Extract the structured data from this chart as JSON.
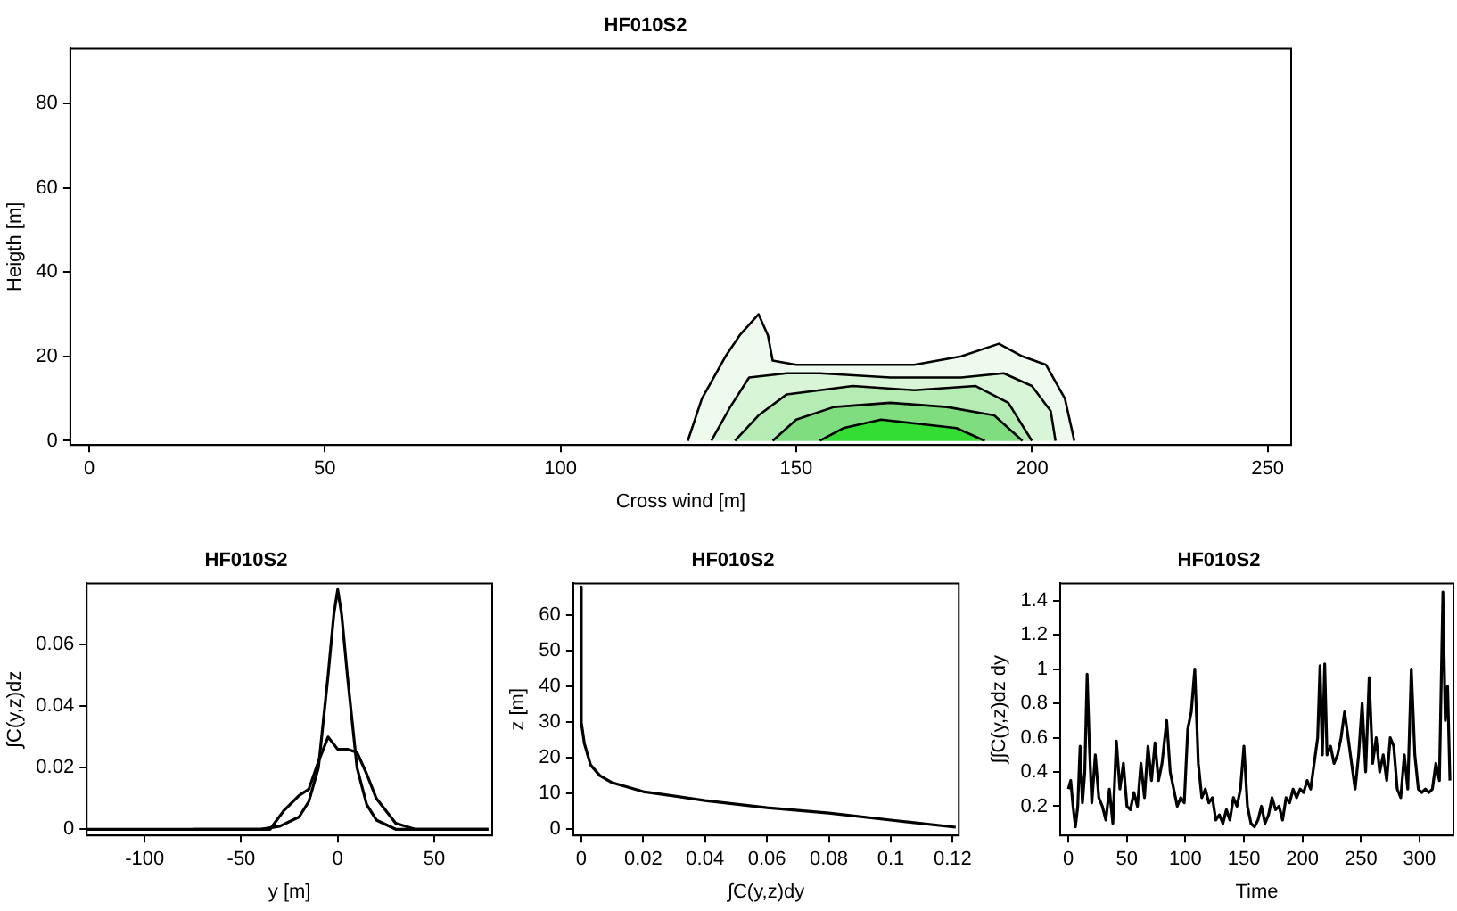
{
  "chart_data": [
    {
      "type": "area",
      "title": "HF010S2",
      "xlabel": "Cross wind [m]",
      "ylabel": "Heigth [m]",
      "xlim": [
        -4,
        255
      ],
      "ylim": [
        -1,
        93
      ],
      "xticks": [
        0,
        50,
        100,
        150,
        200,
        250
      ],
      "yticks": [
        0,
        20,
        40,
        60,
        80
      ],
      "grid": false,
      "legend": false,
      "marker": "none",
      "line_style": "solid",
      "series": [
        {
          "color": "#effaef",
          "x": [
            127,
            130,
            135,
            138,
            142,
            144,
            145,
            150,
            160,
            175,
            185,
            193,
            198,
            203,
            207,
            209
          ],
          "values": [
            0,
            10,
            20,
            25,
            30,
            25,
            19,
            18,
            18,
            18,
            20,
            23,
            20,
            18,
            10,
            0
          ]
        },
        {
          "color": "#d8f5d8",
          "x": [
            132,
            136,
            140,
            148,
            155,
            170,
            185,
            194,
            200,
            204,
            205
          ],
          "values": [
            0,
            8,
            15,
            16,
            16,
            15,
            15,
            16,
            13,
            7,
            0
          ]
        },
        {
          "color": "#b4ecb4",
          "x": [
            137,
            142,
            148,
            155,
            162,
            175,
            188,
            195,
            200
          ],
          "values": [
            0,
            6,
            11,
            12,
            13,
            12,
            13,
            9,
            0
          ]
        },
        {
          "color": "#7fdc7f",
          "x": [
            145,
            150,
            158,
            170,
            182,
            192,
            198
          ],
          "values": [
            0,
            5,
            8,
            9,
            8,
            6,
            0
          ]
        },
        {
          "color": "#33dd33",
          "x": [
            155,
            160,
            168,
            176,
            184,
            190
          ],
          "values": [
            0,
            3,
            5,
            4,
            3,
            0
          ]
        }
      ]
    },
    {
      "type": "line",
      "title": "HF010S2",
      "xlabel": "y [m]",
      "ylabel": "∫C(y,z)dz",
      "xlim": [
        -130,
        80
      ],
      "ylim": [
        -0.002,
        0.08
      ],
      "xticks": [
        -100,
        -50,
        0,
        50
      ],
      "yticks": [
        0,
        0.02,
        0.04,
        0.06
      ],
      "grid": false,
      "legend": false,
      "marker": "none",
      "line_style": "solid",
      "series": [
        {
          "color": "#000000",
          "x": [
            -130,
            -40,
            -30,
            -20,
            -15,
            -10,
            -5,
            -2,
            0,
            2,
            5,
            10,
            15,
            20,
            30,
            78
          ],
          "values": [
            0,
            0,
            0.001,
            0.004,
            0.009,
            0.02,
            0.05,
            0.07,
            0.078,
            0.07,
            0.05,
            0.02,
            0.008,
            0.003,
            0,
            0
          ]
        },
        {
          "color": "#000000",
          "x": [
            -75,
            -35,
            -28,
            -20,
            -15,
            -10,
            -5,
            0,
            5,
            10,
            15,
            20,
            30,
            40,
            78
          ],
          "values": [
            0,
            0,
            0.006,
            0.011,
            0.013,
            0.022,
            0.03,
            0.026,
            0.026,
            0.025,
            0.018,
            0.01,
            0.002,
            0,
            0
          ]
        }
      ]
    },
    {
      "type": "line",
      "title": "HF010S2",
      "xlabel": "∫C(y,z)dy",
      "ylabel": "z [m]",
      "xlim": [
        -0.0026,
        0.122
      ],
      "ylim": [
        -1.8,
        69
      ],
      "xticks": [
        0,
        0.02,
        0.04,
        0.06,
        0.08,
        0.1,
        0.12
      ],
      "yticks": [
        0,
        10,
        20,
        30,
        40,
        50,
        60
      ],
      "grid": false,
      "legend": false,
      "marker": "none",
      "line_style": "solid",
      "series": [
        {
          "color": "#000000",
          "x": [
            0,
            0,
            0.001,
            0.003,
            0.006,
            0.01,
            0.02,
            0.04,
            0.06,
            0.08,
            0.1,
            0.121
          ],
          "values": [
            68,
            30,
            24,
            18,
            15,
            13,
            10.5,
            8,
            6,
            4.5,
            2.5,
            0.5
          ]
        }
      ]
    },
    {
      "type": "line",
      "title": "HF010S2",
      "xlabel": "Time",
      "ylabel": "∫∫C(y,z)dz dy",
      "xlim": [
        -7,
        329
      ],
      "ylim": [
        0.03,
        1.5
      ],
      "xticks": [
        0,
        50,
        100,
        150,
        200,
        250,
        300
      ],
      "yticks": [
        0.2,
        0.4,
        0.6,
        0.8,
        1,
        1.2,
        1.4
      ],
      "grid": false,
      "legend": false,
      "marker": "none",
      "line_style": "solid",
      "series": [
        {
          "color": "#000000",
          "x": [
            0,
            2,
            4,
            6,
            8,
            10,
            12,
            14,
            16,
            18,
            20,
            23,
            26,
            29,
            32,
            35,
            38,
            41,
            44,
            47,
            50,
            53,
            56,
            59,
            62,
            65,
            68,
            71,
            74,
            77,
            80,
            84,
            87,
            90,
            93,
            96,
            99,
            102,
            105,
            108,
            111,
            114,
            117,
            120,
            123,
            126,
            129,
            132,
            135,
            138,
            141,
            144,
            147,
            150,
            153,
            156,
            159,
            162,
            165,
            168,
            171,
            174,
            177,
            180,
            183,
            186,
            189,
            192,
            195,
            198,
            201,
            204,
            207,
            210,
            213,
            215,
            217,
            219,
            221,
            224,
            227,
            230,
            233,
            236,
            239,
            242,
            245,
            248,
            251,
            254,
            257,
            260,
            263,
            266,
            269,
            272,
            275,
            278,
            281,
            284,
            287,
            290,
            293,
            296,
            299,
            302,
            305,
            308,
            311,
            314,
            317,
            320,
            322,
            324,
            326
          ],
          "values": [
            0.3,
            0.35,
            0.2,
            0.08,
            0.2,
            0.55,
            0.22,
            0.4,
            0.97,
            0.55,
            0.22,
            0.5,
            0.25,
            0.2,
            0.12,
            0.3,
            0.1,
            0.58,
            0.3,
            0.45,
            0.2,
            0.18,
            0.28,
            0.2,
            0.45,
            0.25,
            0.55,
            0.35,
            0.57,
            0.35,
            0.45,
            0.7,
            0.4,
            0.3,
            0.2,
            0.25,
            0.22,
            0.65,
            0.75,
            1.0,
            0.45,
            0.25,
            0.3,
            0.22,
            0.25,
            0.12,
            0.15,
            0.1,
            0.18,
            0.12,
            0.25,
            0.2,
            0.3,
            0.55,
            0.2,
            0.1,
            0.08,
            0.12,
            0.2,
            0.1,
            0.15,
            0.25,
            0.18,
            0.2,
            0.12,
            0.25,
            0.22,
            0.3,
            0.25,
            0.3,
            0.28,
            0.35,
            0.3,
            0.45,
            0.6,
            1.02,
            0.5,
            1.03,
            0.5,
            0.55,
            0.45,
            0.5,
            0.6,
            0.75,
            0.6,
            0.45,
            0.3,
            0.5,
            0.8,
            0.4,
            0.95,
            0.45,
            0.6,
            0.4,
            0.5,
            0.35,
            0.6,
            0.55,
            0.3,
            0.25,
            0.5,
            0.3,
            1.0,
            0.5,
            0.3,
            0.28,
            0.3,
            0.28,
            0.3,
            0.45,
            0.35,
            1.45,
            0.7,
            0.9,
            0.35
          ]
        }
      ]
    }
  ]
}
